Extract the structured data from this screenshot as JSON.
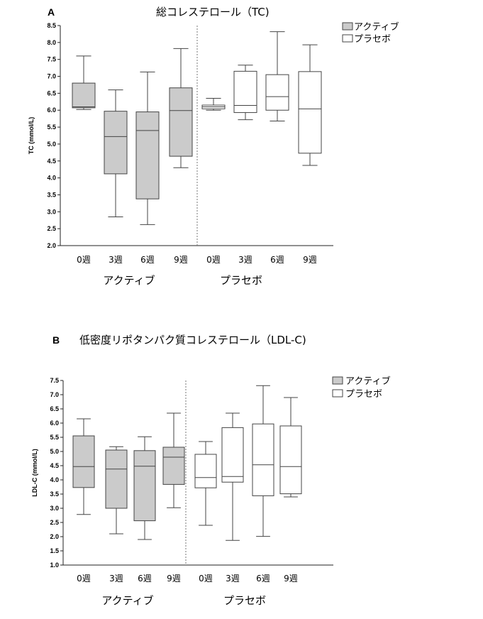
{
  "chart_data": [
    {
      "type": "box",
      "panel": "A",
      "title": "総コレステロール（TC)",
      "ylabel": "TC (mmol/L)",
      "ylim": [
        2.0,
        8.5
      ],
      "yticks": [
        "2.0",
        "2.5",
        "3.0",
        "3.5",
        "4.0",
        "4.5",
        "5.0",
        "5.5",
        "6.0",
        "6.5",
        "7.0",
        "7.5",
        "8.0",
        "8.5"
      ],
      "categories": [
        "0週",
        "3週",
        "6週",
        "9週",
        "0週",
        "3週",
        "6週",
        "9週"
      ],
      "groups": [
        "アクティブ",
        "プラセボ"
      ],
      "legend": {
        "placement": "top-right",
        "items": [
          "アクティブ",
          "プラセボ"
        ]
      },
      "colors": {
        "active": "#cbcbcb",
        "placebo": "#ffffff",
        "stroke": "#444444",
        "divider": "#777777"
      },
      "series": [
        {
          "name": "アクティブ",
          "boxes": [
            {
              "min": 6.02,
              "q1": 6.07,
              "median": 6.1,
              "q3": 6.8,
              "max": 7.6
            },
            {
              "min": 2.85,
              "q1": 4.12,
              "median": 5.22,
              "q3": 5.97,
              "max": 6.6
            },
            {
              "min": 2.62,
              "q1": 3.38,
              "median": 5.4,
              "q3": 5.95,
              "max": 7.13
            },
            {
              "min": 4.3,
              "q1": 4.64,
              "median": 5.99,
              "q3": 6.66,
              "max": 7.82
            }
          ]
        },
        {
          "name": "プラセボ",
          "boxes": [
            {
              "min": 6.0,
              "q1": 6.04,
              "median": 6.1,
              "q3": 6.15,
              "max": 6.35
            },
            {
              "min": 5.72,
              "q1": 5.93,
              "median": 6.14,
              "q3": 7.15,
              "max": 7.33
            },
            {
              "min": 5.68,
              "q1": 6.0,
              "median": 6.4,
              "q3": 7.05,
              "max": 8.32
            },
            {
              "min": 4.37,
              "q1": 4.73,
              "median": 6.04,
              "q3": 7.14,
              "max": 7.93
            }
          ]
        }
      ]
    },
    {
      "type": "box",
      "panel": "B",
      "title": "低密度リポタンパク質コレステロール（LDL-C)",
      "ylabel": "LDL-C (mmol/L)",
      "ylim": [
        1.0,
        7.5
      ],
      "yticks": [
        "1.0",
        "1.5",
        "2.0",
        "2.5",
        "3.0",
        "3.5",
        "4.0",
        "4.5",
        "5.0",
        "5.5",
        "6.0",
        "6.5",
        "7.0",
        "7.5"
      ],
      "categories": [
        "0週",
        "3週",
        "6週",
        "9週",
        "0週",
        "3週",
        "6週",
        "9週"
      ],
      "groups": [
        "アクティブ",
        "プラセボ"
      ],
      "legend": {
        "placement": "top-right",
        "items": [
          "アクティブ",
          "プラセボ"
        ]
      },
      "colors": {
        "active": "#cbcbcb",
        "placebo": "#ffffff",
        "stroke": "#444444",
        "divider": "#777777"
      },
      "series": [
        {
          "name": "アクティブ",
          "boxes": [
            {
              "min": 2.78,
              "q1": 3.73,
              "median": 4.47,
              "q3": 5.55,
              "max": 6.15
            },
            {
              "min": 2.1,
              "q1": 3.0,
              "median": 4.38,
              "q3": 5.05,
              "max": 5.17
            },
            {
              "min": 1.9,
              "q1": 2.56,
              "median": 4.48,
              "q3": 5.03,
              "max": 5.52
            },
            {
              "min": 3.02,
              "q1": 3.84,
              "median": 4.8,
              "q3": 5.15,
              "max": 6.35
            }
          ]
        },
        {
          "name": "プラセボ",
          "boxes": [
            {
              "min": 2.4,
              "q1": 3.72,
              "median": 4.08,
              "q3": 4.9,
              "max": 5.35
            },
            {
              "min": 1.87,
              "q1": 3.92,
              "median": 4.12,
              "q3": 5.84,
              "max": 6.35
            },
            {
              "min": 2.01,
              "q1": 3.44,
              "median": 4.53,
              "q3": 5.97,
              "max": 7.32
            },
            {
              "min": 3.4,
              "q1": 3.51,
              "median": 4.47,
              "q3": 5.9,
              "max": 6.9
            }
          ]
        }
      ]
    }
  ]
}
